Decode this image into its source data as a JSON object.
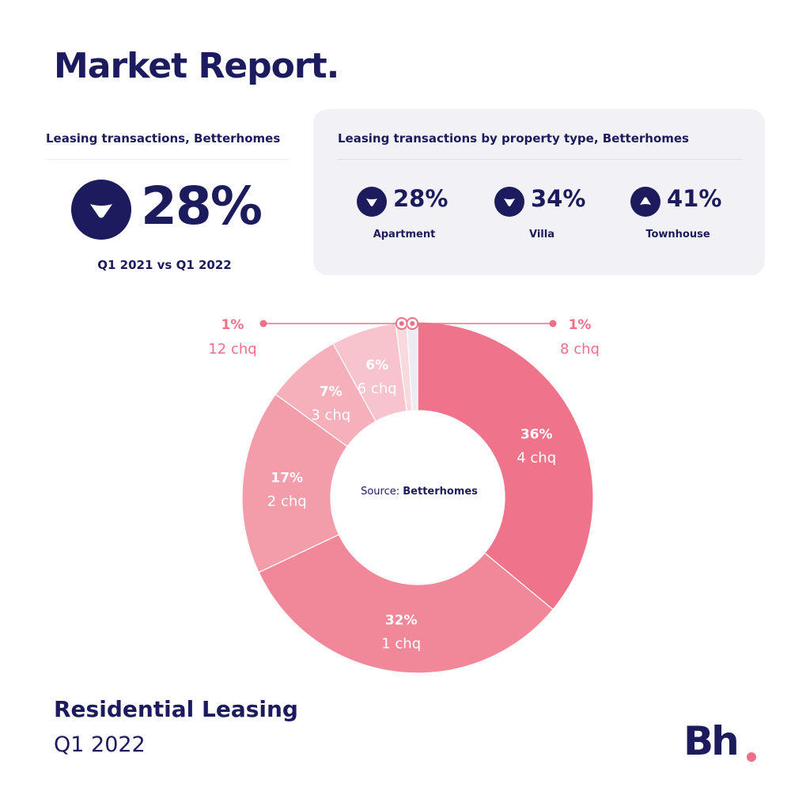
{
  "title": "Market Report.",
  "summary": {
    "caption": "Leasing transactions, Betterhomes",
    "direction": "down",
    "value": "28%",
    "period": "Q1 2021 vs Q1 2022"
  },
  "by_type": {
    "caption": "Leasing transactions by property type, Betterhomes",
    "items": [
      {
        "direction": "down",
        "value": "28%",
        "label": "Apartment"
      },
      {
        "direction": "down",
        "value": "34%",
        "label": "Villa"
      },
      {
        "direction": "up",
        "value": "41%",
        "label": "Townhouse"
      }
    ]
  },
  "source": {
    "prefix": "Source: ",
    "name": "Betterhomes"
  },
  "footer": {
    "title": "Residential Leasing",
    "subtitle": "Q1 2022"
  },
  "logo": {
    "text": "Bh"
  },
  "colors": {
    "navy": "#1c1b5e",
    "accent": "#ee7088",
    "panel": "#f1f1f6"
  },
  "chart_data": {
    "type": "pie",
    "donut": true,
    "slices": [
      {
        "value": 36,
        "label": "36%",
        "count": "4 chq",
        "color": "#ef748b"
      },
      {
        "value": 32,
        "label": "32%",
        "count": "1 chq",
        "color": "#f1889a"
      },
      {
        "value": 17,
        "label": "17%",
        "count": "2 chq",
        "color": "#f39caa"
      },
      {
        "value": 7,
        "label": "7%",
        "count": "3 chq",
        "color": "#f5b0bb"
      },
      {
        "value": 6,
        "label": "6%",
        "count": "6 chq",
        "color": "#f7c3cc"
      },
      {
        "value": 1,
        "label": "1%",
        "count": "12 chq",
        "color": "#f9d9de",
        "callout": "left"
      },
      {
        "value": 1,
        "label": "1%",
        "count": "8 chq",
        "color": "#ececf2",
        "callout": "right"
      }
    ]
  }
}
